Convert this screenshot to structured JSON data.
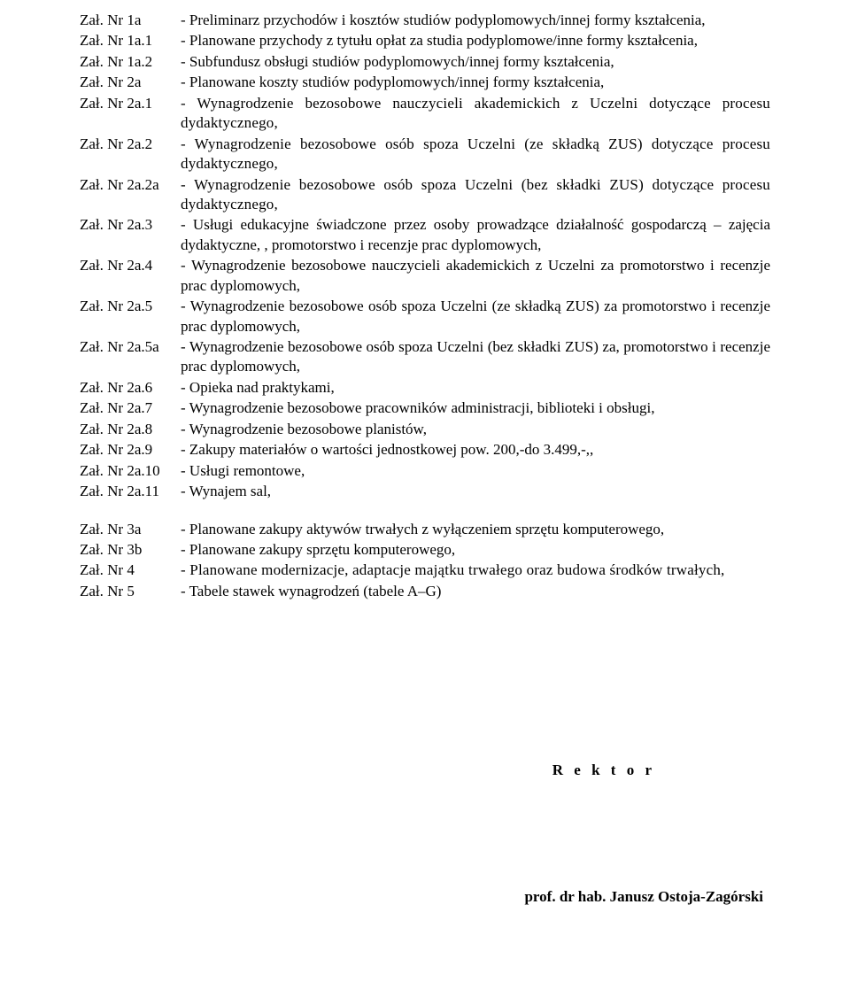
{
  "items": [
    {
      "label": "Zał. Nr 1a",
      "desc": "- Preliminarz przychodów i kosztów studiów podyplomowych/innej formy kształcenia,"
    },
    {
      "label": "Zał. Nr 1a.1",
      "desc": "- Planowane przychody z tytułu opłat za studia podyplomowe/inne formy kształcenia,"
    },
    {
      "label": "Zał. Nr 1a.2",
      "desc": "- Subfundusz obsługi studiów podyplomowych/innej formy kształcenia,"
    },
    {
      "label": "Zał. Nr 2a",
      "desc": "- Planowane koszty studiów podyplomowych/innej formy kształcenia,"
    },
    {
      "label": "Zał. Nr 2a.1",
      "desc": "- Wynagrodzenie bezosobowe nauczycieli akademickich z Uczelni dotyczące procesu dydaktycznego,"
    },
    {
      "label": "Zał. Nr 2a.2",
      "desc": "- Wynagrodzenie bezosobowe osób spoza Uczelni (ze składką ZUS) dotyczące procesu dydaktycznego,"
    },
    {
      "label": "Zał. Nr 2a.2a",
      "desc": "- Wynagrodzenie bezosobowe osób spoza Uczelni (bez składki ZUS) dotyczące procesu dydaktycznego,"
    },
    {
      "label": "Zał. Nr 2a.3",
      "desc": "- Usługi edukacyjne świadczone przez osoby prowadzące działalność gospodarczą – zajęcia dydaktyczne, , promotorstwo i recenzje prac dyplomowych,"
    },
    {
      "label": "Zał. Nr 2a.4",
      "desc": "- Wynagrodzenie bezosobowe nauczycieli akademickich z Uczelni za promotorstwo i recenzje prac dyplomowych,"
    },
    {
      "label": "Zał. Nr 2a.5",
      "desc": "- Wynagrodzenie bezosobowe osób spoza Uczelni (ze składką ZUS) za promo­torstwo i recenzje prac dyplomowych,"
    },
    {
      "label": "Zał. Nr 2a.5a",
      "desc": "- Wynagrodzenie bezosobowe osób spoza Uczelni (bez składki ZUS) za, promo­torstwo i recenzje prac dyplomowych,"
    },
    {
      "label": "Zał. Nr 2a.6",
      "desc": "- Opieka nad praktykami,"
    },
    {
      "label": "Zał. Nr 2a.7",
      "desc": "- Wynagrodzenie bezosobowe pracowników administracji, biblioteki i obsługi,"
    },
    {
      "label": "Zał. Nr 2a.8",
      "desc": "- Wynagrodzenie bezosobowe planistów,"
    },
    {
      "label": "Zał. Nr 2a.9",
      "desc": "- Zakupy materiałów o wartości jednostkowej pow. 200,-do 3.499,-,,"
    },
    {
      "label": "Zał. Nr 2a.10",
      "desc": "- Usługi remontowe,"
    },
    {
      "label": "Zał. Nr 2a.11",
      "desc": "- Wynajem sal,"
    }
  ],
  "items2": [
    {
      "label": "Zał. Nr 3a",
      "desc": "- Planowane zakupy aktywów trwałych z wyłączeniem sprzętu komputerowego,"
    },
    {
      "label": "Zał. Nr 3b",
      "desc": "- Planowane zakupy sprzętu komputerowego,"
    },
    {
      "label": "Zał. Nr 4",
      "desc": "- Planowane modernizacje, adaptacje majątku trwałego oraz budowa środków trwałych,"
    },
    {
      "label": "Zał. Nr 5",
      "desc": "- Tabele stawek wynagrodzeń (tabele A–G)"
    }
  ],
  "rektor": "R e k t o r",
  "sig": "prof. dr hab. Janusz Ostoja-Zagórski"
}
